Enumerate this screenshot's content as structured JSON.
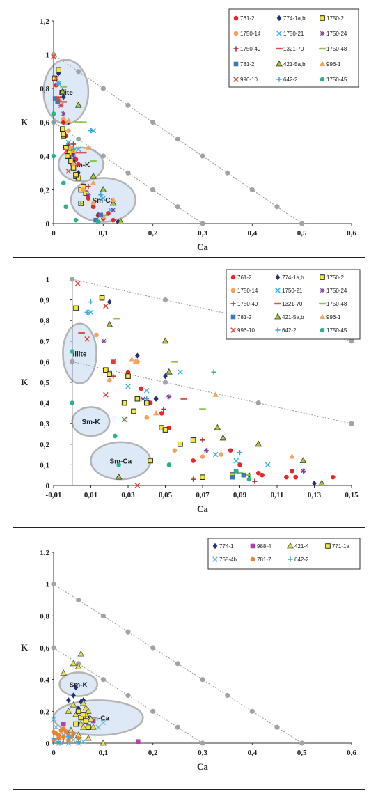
{
  "styles": {
    "761-2": {
      "shape": "circle",
      "color": "#e8262b"
    },
    "774-1a,b": {
      "shape": "diamond",
      "color": "#1f2f7a"
    },
    "1750-2": {
      "shape": "square",
      "color": "#f5e83a",
      "stroke": "#222222"
    },
    "1750-14": {
      "shape": "circle",
      "color": "#f4a15a"
    },
    "1750-21": {
      "shape": "x",
      "color": "#39b4e6"
    },
    "1750-24": {
      "shape": "star",
      "color": "#7b3f98"
    },
    "1750-49": {
      "shape": "plus",
      "color": "#b5282e"
    },
    "1321-70": {
      "shape": "dash",
      "color": "#d9534f"
    },
    "1750-48": {
      "shape": "dash",
      "color": "#8bc34a"
    },
    "781-2": {
      "shape": "square",
      "color": "#3c78b6"
    },
    "421-5a,b": {
      "shape": "triangle",
      "color": "#a5c639",
      "stroke": "#333333"
    },
    "996-1": {
      "shape": "triangle",
      "color": "#f6a35b"
    },
    "996-10": {
      "shape": "x",
      "color": "#e0463c"
    },
    "642-2": {
      "shape": "plus",
      "color": "#39a7e0"
    },
    "1750-45": {
      "shape": "circle",
      "color": "#25b58b"
    },
    "774-1": {
      "shape": "diamond",
      "color": "#1f2f7a"
    },
    "988-4": {
      "shape": "square",
      "color": "#b93db2"
    },
    "421-4": {
      "shape": "triangle",
      "color": "#e8e04a",
      "stroke": "#555555"
    },
    "771-1a": {
      "shape": "square",
      "color": "#f5e83a",
      "stroke": "#333333"
    },
    "768-4b": {
      "shape": "x",
      "color": "#7ab8d9"
    },
    "781-7": {
      "shape": "circle",
      "color": "#e8843a"
    }
  },
  "chart_data": [
    {
      "type": "scatter",
      "xlabel": "Ca",
      "ylabel": "K",
      "xlim": [
        0,
        0.6
      ],
      "ylim": [
        0,
        1.2
      ],
      "xticks": [
        "0",
        "0,1",
        "0,2",
        "0,3",
        "0,4",
        "0,5",
        "0,6"
      ],
      "yticks": [
        "0",
        "0,2",
        "0,4",
        "0,6",
        "0,8",
        "1",
        "1,2"
      ],
      "grid": false,
      "legend_position": "top-right",
      "legend_columns": 3,
      "reference_lines": [
        {
          "from": [
            0,
            1.0
          ],
          "to": [
            0.5,
            0
          ]
        },
        {
          "from": [
            0,
            0.6
          ],
          "to": [
            0.3,
            0
          ]
        }
      ],
      "regions": [
        {
          "label": "Illite",
          "cx": 0.025,
          "cy": 0.78,
          "rx": 0.045,
          "ry": 0.19
        },
        {
          "label": "Sm-K",
          "cx": 0.055,
          "cy": 0.35,
          "rx": 0.045,
          "ry": 0.1
        },
        {
          "label": "Sm-Ca",
          "cx": 0.1,
          "cy": 0.14,
          "rx": 0.065,
          "ry": 0.13
        }
      ],
      "series": [
        {
          "name": "761-2",
          "x": [
            0.005,
            0.01,
            0.02,
            0.025,
            0.03,
            0.035,
            0.045,
            0.05,
            0.06,
            0.07,
            0.08,
            0.09,
            0.1,
            0.11,
            0.12
          ],
          "y": [
            0.82,
            0.74,
            0.6,
            0.52,
            0.47,
            0.42,
            0.38,
            0.35,
            0.22,
            0.15,
            0.1,
            0.05,
            0.03,
            0.06,
            0.02
          ]
        },
        {
          "name": "774-1a,b",
          "x": [
            0.01,
            0.02,
            0.03,
            0.04,
            0.05,
            0.09,
            0.13
          ],
          "y": [
            0.89,
            0.75,
            0.6,
            0.42,
            0.3,
            0.05,
            0.01
          ]
        },
        {
          "name": "1750-2",
          "x": [
            0.002,
            0.01,
            0.018,
            0.02,
            0.025,
            0.03,
            0.032,
            0.038,
            0.04,
            0.045,
            0.05,
            0.055,
            0.06,
            0.065,
            0.02,
            0.028,
            0.035,
            0.045,
            0.055
          ],
          "y": [
            0.86,
            0.91,
            0.56,
            0.52,
            0.45,
            0.4,
            0.42,
            0.36,
            0.33,
            0.28,
            0.27,
            0.2,
            0.22,
            0.18,
            0.53,
            0.4,
            0.37,
            0.29,
            0.12
          ]
        },
        {
          "name": "1750-14",
          "x": [
            0.012,
            0.02,
            0.03,
            0.035,
            0.04,
            0.06,
            0.08,
            0.1
          ],
          "y": [
            0.73,
            0.62,
            0.55,
            0.45,
            0.35,
            0.2,
            0.12,
            0.04
          ]
        },
        {
          "name": "1750-21",
          "x": [
            0.01,
            0.03,
            0.05,
            0.08,
            0.1,
            0.115
          ],
          "y": [
            0.83,
            0.48,
            0.44,
            0.55,
            0.15,
            0.08
          ]
        },
        {
          "name": "1750-24",
          "x": [
            0.015,
            0.02,
            0.04,
            0.07,
            0.12
          ],
          "y": [
            0.7,
            0.65,
            0.4,
            0.17,
            0.08
          ]
        },
        {
          "name": "1750-49",
          "x": [
            0.02,
            0.04,
            0.07,
            0.09
          ],
          "y": [
            0.6,
            0.47,
            0.22,
            0.05
          ]
        },
        {
          "name": "1321-70",
          "x": [
            0.02,
            0.05,
            0.06
          ],
          "y": [
            0.72,
            0.42,
            0.42
          ]
        },
        {
          "name": "1750-48",
          "x": [
            0.02,
            0.05,
            0.06,
            0.08,
            0.1
          ],
          "y": [
            0.81,
            0.6,
            0.6,
            0.37,
            0.05
          ]
        },
        {
          "name": "781-2",
          "x": [
            0.003,
            0.008,
            0.085,
            0.095
          ],
          "y": [
            0.74,
            0.72,
            0.02,
            0.05
          ]
        },
        {
          "name": "421-5a,b",
          "x": [
            0.018,
            0.05,
            0.08,
            0.1,
            0.12,
            0.135
          ],
          "y": [
            0.78,
            0.7,
            0.28,
            0.2,
            0.12,
            0.01
          ]
        },
        {
          "name": "996-1",
          "x": [
            0.03,
            0.04,
            0.07,
            0.08,
            0.12
          ],
          "y": [
            0.61,
            0.43,
            0.45,
            0.24,
            0.14
          ]
        },
        {
          "name": "996-10",
          "x": [
            0.0,
            0.005,
            0.01,
            0.015,
            0.025,
            0.03
          ],
          "y": [
            0.99,
            0.86,
            0.74,
            0.7,
            0.43,
            0.31
          ]
        },
        {
          "name": "642-2",
          "x": [
            0.0,
            0.01,
            0.04,
            0.055,
            0.075,
            0.095
          ],
          "y": [
            0.6,
            0.83,
            0.44,
            0.12,
            0.55,
            0.17
          ]
        },
        {
          "name": "1750-45",
          "x": [
            0.0,
            0.0,
            0.02,
            0.025,
            0.045,
            0.09
          ],
          "y": [
            0.65,
            0.4,
            0.24,
            0.1,
            0.02,
            0.01
          ]
        }
      ]
    },
    {
      "type": "scatter",
      "xlabel": "Ca",
      "ylabel": "K",
      "xlim": [
        -0.01,
        0.15
      ],
      "ylim": [
        0,
        1
      ],
      "xticks": [
        "-0,01",
        "0,01",
        "0,03",
        "0,05",
        "0,07",
        "0,09",
        "0,11",
        "0,13",
        "0,15"
      ],
      "yticks": [
        "0",
        "0,1",
        "0,2",
        "0,3",
        "0,4",
        "0,5",
        "0,6",
        "0,7",
        "0,8",
        "0,9",
        "1"
      ],
      "grid": false,
      "legend_position": "top-right",
      "legend_columns": 3,
      "reference_lines": [
        {
          "from": [
            0,
            1.0
          ],
          "to": [
            0.15,
            0.7
          ]
        },
        {
          "from": [
            0,
            0.6
          ],
          "to": [
            0.15,
            0.3
          ]
        }
      ],
      "regions": [
        {
          "label": "Illite",
          "cx": 0.004,
          "cy": 0.64,
          "rx": 0.009,
          "ry": 0.145
        },
        {
          "label": "Sm-K",
          "cx": 0.01,
          "cy": 0.31,
          "rx": 0.01,
          "ry": 0.07
        },
        {
          "label": "Sm-Ca",
          "cx": 0.026,
          "cy": 0.12,
          "rx": 0.016,
          "ry": 0.09
        }
      ],
      "series": [
        {
          "name": "761-2",
          "x": [
            0.022,
            0.03,
            0.037,
            0.042,
            0.045,
            0.048,
            0.052,
            0.065,
            0.085,
            0.09,
            0.1,
            0.102,
            0.115,
            0.118,
            0.12,
            0.14
          ],
          "y": [
            0.6,
            0.55,
            0.47,
            0.4,
            0.42,
            0.35,
            0.28,
            0.12,
            0.17,
            0.1,
            0.06,
            0.05,
            0.04,
            0.07,
            0.04,
            0.04
          ]
        },
        {
          "name": "774-1a,b",
          "x": [
            0.02,
            0.035,
            0.045,
            0.05,
            0.095,
            0.13
          ],
          "y": [
            0.89,
            0.63,
            0.42,
            0.53,
            0.05,
            0.01
          ]
        },
        {
          "name": "1750-2",
          "x": [
            0.002,
            0.016,
            0.018,
            0.02,
            0.028,
            0.03,
            0.033,
            0.035,
            0.04,
            0.042,
            0.048,
            0.05,
            0.058,
            0.065,
            0.07,
            0.086
          ],
          "y": [
            0.86,
            0.91,
            0.56,
            0.54,
            0.4,
            0.53,
            0.36,
            0.42,
            0.4,
            0.12,
            0.28,
            0.27,
            0.2,
            0.22,
            0.04,
            0.05
          ]
        },
        {
          "name": "1750-14",
          "x": [
            0.013,
            0.02,
            0.035,
            0.04,
            0.055,
            0.07,
            0.08
          ],
          "y": [
            0.73,
            0.51,
            0.6,
            0.33,
            0.17,
            0.14,
            0.15
          ]
        },
        {
          "name": "1750-21",
          "x": [
            0.01,
            0.03,
            0.04,
            0.058,
            0.077,
            0.088,
            0.105
          ],
          "y": [
            0.84,
            0.48,
            0.46,
            0.55,
            0.15,
            0.12,
            0.1
          ]
        },
        {
          "name": "1750-24",
          "x": [
            0.017,
            0.038,
            0.052,
            0.072,
            0.124
          ],
          "y": [
            0.7,
            0.42,
            0.43,
            0.17,
            0.07
          ]
        },
        {
          "name": "1750-49",
          "x": [
            0.022,
            0.049,
            0.065,
            0.07,
            0.098
          ],
          "y": [
            0.53,
            0.37,
            0.03,
            0.22,
            0.02
          ]
        },
        {
          "name": "1321-70",
          "x": [
            0.005,
            0.06
          ],
          "y": [
            0.74,
            0.42
          ]
        },
        {
          "name": "1750-48",
          "x": [
            0.024,
            0.055,
            0.07,
            0.09,
            0.094
          ],
          "y": [
            0.81,
            0.6,
            0.37,
            0.06,
            0.05
          ]
        },
        {
          "name": "781-2",
          "x": [
            0.086,
            0.088,
            0.092
          ],
          "y": [
            0.04,
            0.07,
            0.05
          ]
        },
        {
          "name": "421-5a,b",
          "x": [
            0.02,
            0.025,
            0.05,
            0.052,
            0.078,
            0.081,
            0.1,
            0.124,
            0.134
          ],
          "y": [
            0.78,
            0.04,
            0.7,
            0.55,
            0.28,
            0.23,
            0.2,
            0.12,
            0.01
          ]
        },
        {
          "name": "996-1",
          "x": [
            0.032,
            0.034,
            0.045,
            0.077,
            0.118
          ],
          "y": [
            0.61,
            0.6,
            0.35,
            0.44,
            0.14
          ]
        },
        {
          "name": "996-10",
          "x": [
            0.003,
            0.008,
            0.018,
            0.018,
            0.022,
            0.028,
            0.035
          ],
          "y": [
            0.98,
            0.71,
            0.87,
            0.44,
            0.6,
            0.32,
            0.0
          ]
        },
        {
          "name": "642-2",
          "x": [
            0.008,
            0.01,
            0.04,
            0.076,
            0.09
          ],
          "y": [
            0.84,
            0.89,
            0.42,
            0.55,
            0.16
          ]
        },
        {
          "name": "1750-45",
          "x": [
            0.0,
            0.0,
            0.023,
            0.025,
            0.052,
            0.088,
            0.095
          ],
          "y": [
            0.65,
            0.4,
            0.24,
            0.1,
            0.1,
            0.07,
            0.03
          ]
        }
      ]
    },
    {
      "type": "scatter",
      "xlabel": "Ca",
      "ylabel": "K",
      "xlim": [
        0,
        0.6
      ],
      "ylim": [
        0,
        1.2
      ],
      "xticks": [
        "0",
        "0,1",
        "0,2",
        "0,3",
        "0,4",
        "0,5",
        "0,6"
      ],
      "yticks": [
        "0",
        "0,2",
        "0,4",
        "0,6",
        "0,8",
        "1",
        "1,2"
      ],
      "grid": false,
      "legend_position": "top-right",
      "legend_columns": 4,
      "reference_lines": [
        {
          "from": [
            0,
            1.0
          ],
          "to": [
            0.5,
            0
          ]
        },
        {
          "from": [
            0,
            0.6
          ],
          "to": [
            0.3,
            0
          ]
        }
      ],
      "regions": [
        {
          "label": "Sm-K",
          "cx": 0.05,
          "cy": 0.37,
          "rx": 0.038,
          "ry": 0.075
        },
        {
          "label": "Sm-Ca",
          "cx": 0.09,
          "cy": 0.16,
          "rx": 0.09,
          "ry": 0.11
        }
      ],
      "series": [
        {
          "name": "774-1",
          "x": [
            0.03,
            0.04,
            0.045,
            0.05,
            0.055,
            0.06,
            0.07,
            0.05
          ],
          "y": [
            0.27,
            0.3,
            0.35,
            0.22,
            0.26,
            0.27,
            0.2,
            0.12
          ]
        },
        {
          "name": "988-4",
          "x": [
            0.17,
            0.02,
            0.08
          ],
          "y": [
            0.01,
            0.12,
            0.14
          ]
        },
        {
          "name": "421-4",
          "x": [
            0.02,
            0.04,
            0.05,
            0.055,
            0.06,
            0.065,
            0.03,
            0.045,
            0.07,
            0.075,
            0.08,
            0.055,
            0.06,
            0.065,
            0.1,
            0.05,
            0.035,
            0.07,
            0.06,
            0.04
          ],
          "y": [
            0.44,
            0.5,
            0.48,
            0.56,
            0.25,
            0.22,
            0.2,
            0.18,
            0.2,
            0.15,
            0.1,
            0.12,
            0.1,
            0.18,
            0.0,
            0.05,
            0.08,
            0.03,
            0.16,
            0.24
          ]
        },
        {
          "name": "771-1a",
          "x": [
            0.05,
            0.055,
            0.06,
            0.065,
            0.045,
            0.07
          ],
          "y": [
            0.2,
            0.16,
            0.18,
            0.14,
            0.12,
            0.1
          ]
        },
        {
          "name": "768-4b",
          "x": [
            0.0,
            0.005,
            0.01,
            0.015,
            0.02,
            0.03,
            0.04,
            0.05,
            0.06,
            0.09,
            0.1
          ],
          "y": [
            0.15,
            0.1,
            0.0,
            0.0,
            0.05,
            0.0,
            0.02,
            0.0,
            0.01,
            0.1,
            0.13
          ]
        },
        {
          "name": "781-7",
          "x": [
            0.0,
            0.005,
            0.01,
            0.015,
            0.02,
            0.025,
            0.03,
            0.035,
            0.04,
            0.05,
            0.0,
            0.01,
            0.02,
            0.03
          ],
          "y": [
            0.07,
            0.06,
            0.05,
            0.08,
            0.09,
            0.07,
            0.05,
            0.04,
            0.06,
            0.03,
            0.02,
            0.03,
            0.04,
            0.02
          ]
        },
        {
          "name": "642-2",
          "x": [
            0.0,
            0.01,
            0.02,
            0.03,
            0.04,
            0.05
          ],
          "y": [
            0.03,
            0.01,
            0.02,
            0.04,
            0.05,
            0.01
          ]
        }
      ]
    }
  ]
}
